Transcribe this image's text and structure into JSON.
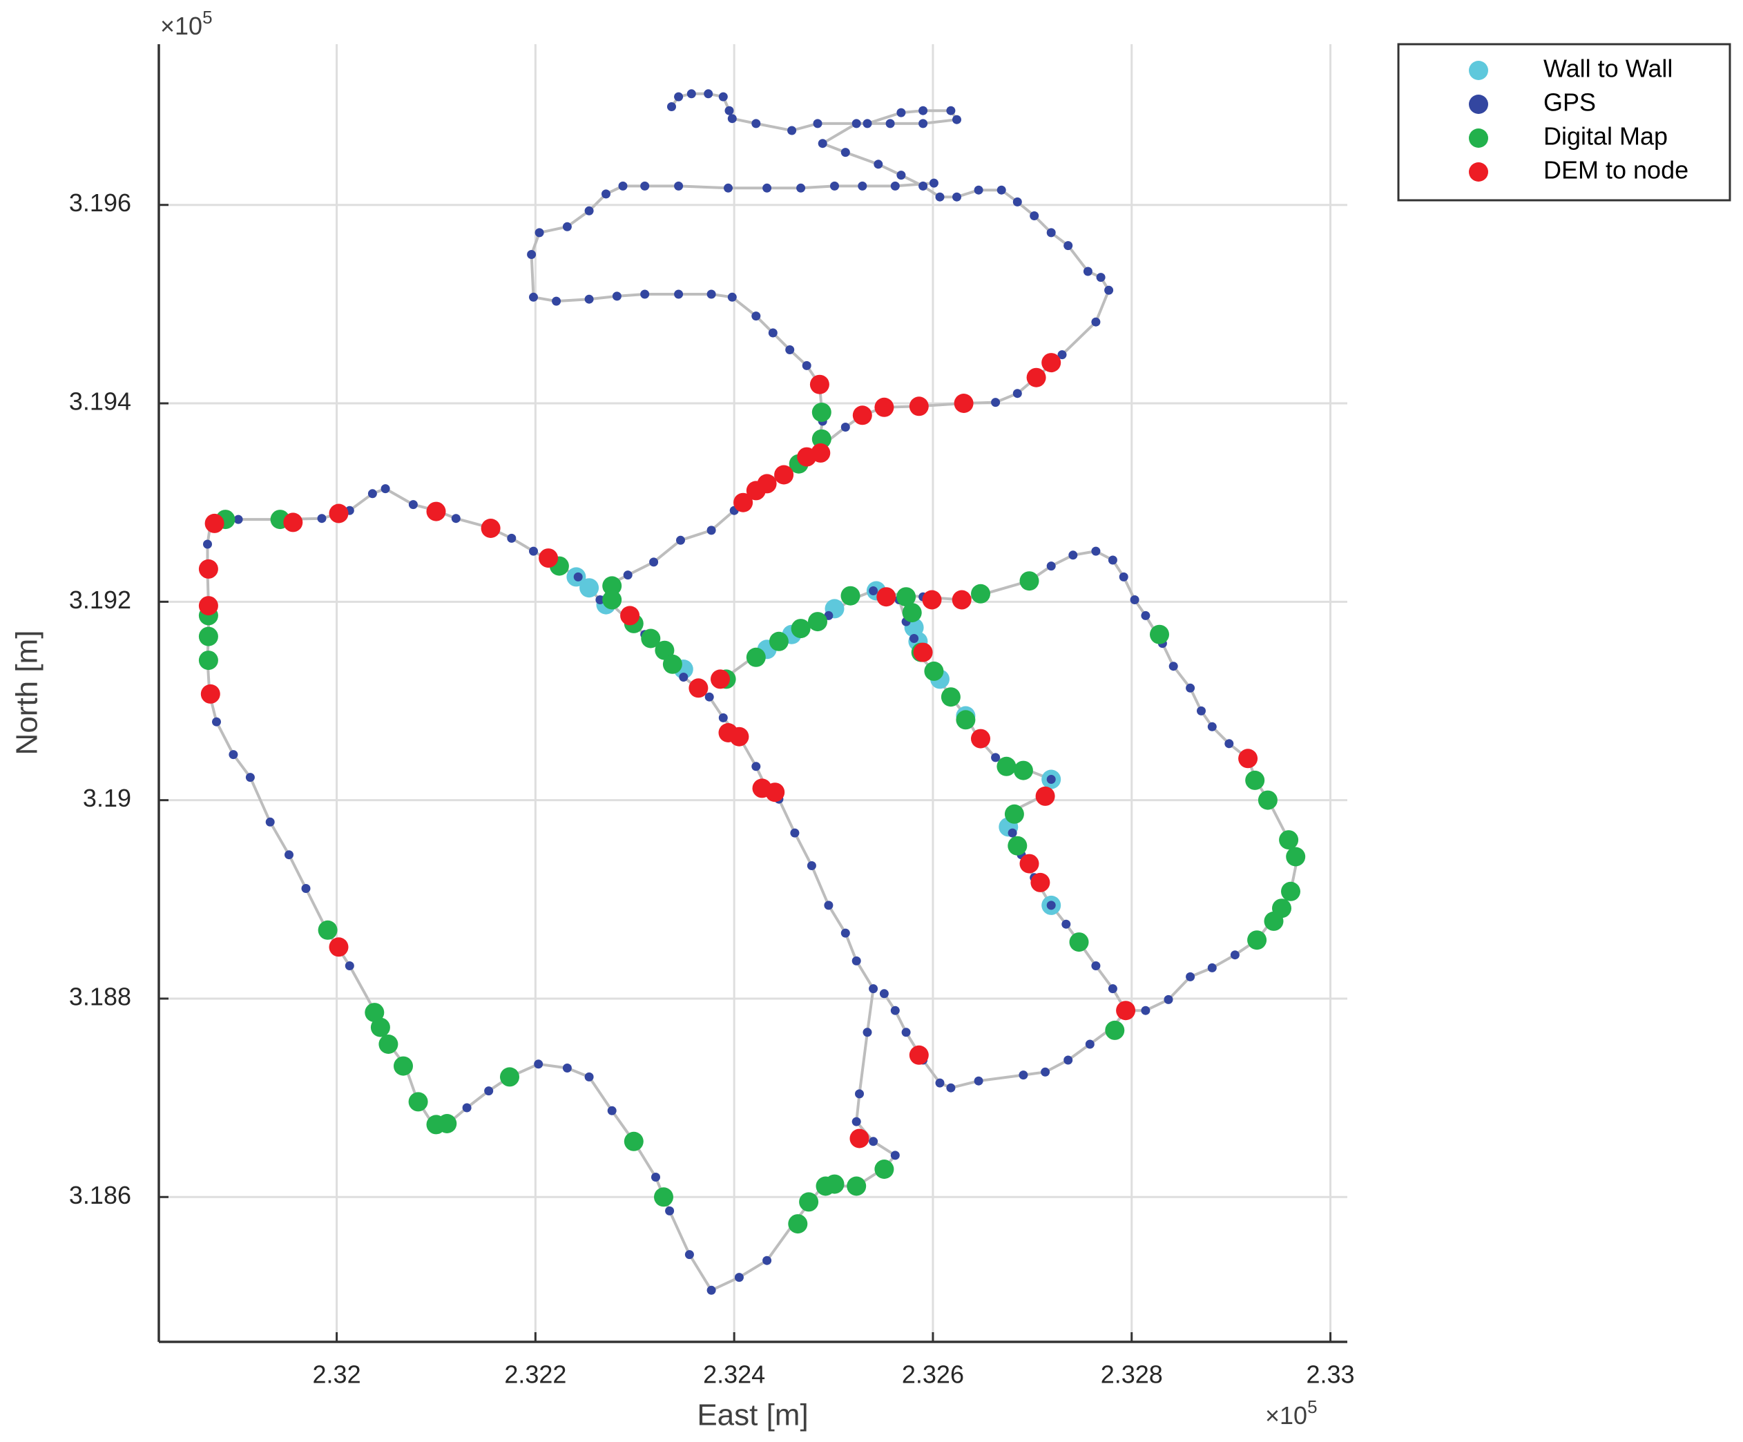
{
  "chart_data": {
    "type": "scatter",
    "xlabel": "East [m]",
    "ylabel": "North [m]",
    "x_multiplier": {
      "base": "×10",
      "exponent": "5"
    },
    "y_multiplier": {
      "base": "×10",
      "exponent": "5"
    },
    "xlim": [
      2.31821,
      2.33017
    ],
    "ylim": [
      3.18454,
      3.19762
    ],
    "xticks": [
      2.32,
      2.322,
      2.324,
      2.326,
      2.328,
      2.33
    ],
    "yticks": [
      3.186,
      3.188,
      3.19,
      3.192,
      3.194,
      3.196
    ],
    "grid": true,
    "legend": "outside-northeast",
    "series": [
      {
        "name": "Wall to Wall",
        "color": "#5ec8dc",
        "x": [
          2.32241,
          2.32254,
          2.32271,
          2.32349,
          2.32433,
          2.32458,
          2.32501,
          2.32543,
          2.32581,
          2.32585,
          2.32607,
          2.32633,
          2.32676,
          2.32719,
          2.32719
        ],
        "values": [
          3.19225,
          3.19214,
          3.19197,
          3.19132,
          3.19152,
          3.19167,
          3.19193,
          3.19211,
          3.19174,
          3.1916,
          3.19122,
          3.19085,
          3.18973,
          3.19021,
          3.18894
        ]
      },
      {
        "name": "GPS",
        "color": "#3346a0",
        "line_color": "#bdbdbd",
        "x": [
          2.32265,
          2.32243,
          2.32224,
          2.32198,
          2.32176,
          2.32153,
          2.3212,
          2.321,
          2.32077,
          2.32049,
          2.32036,
          2.32013,
          2.31985,
          2.31941,
          2.31901,
          2.31873,
          2.3187,
          2.3187,
          2.31871,
          2.31871,
          2.3187,
          2.31872,
          2.31879,
          2.31896,
          2.31913,
          2.31933,
          2.31952,
          2.31969,
          2.3199,
          2.32013,
          2.32039,
          2.32053,
          2.32069,
          2.32081,
          2.32097,
          2.32112,
          2.32131,
          2.32153,
          2.32174,
          2.32203,
          2.32232,
          2.32254,
          2.32277,
          2.32299,
          2.32321,
          2.32335,
          2.32355,
          2.32377,
          2.32405,
          2.32433,
          2.32461,
          2.32489,
          2.32523,
          2.32551,
          2.32562,
          2.3254,
          2.32523,
          2.32526,
          2.32534,
          2.3254,
          2.32523,
          2.32512,
          2.32495,
          2.32478,
          2.32461,
          2.32445,
          2.32433,
          2.32422,
          2.32405,
          2.32389,
          2.32375,
          2.32349,
          2.32333,
          2.3231,
          2.32293,
          2.32277,
          2.32274,
          2.32293,
          2.32319,
          2.32346,
          2.32377,
          2.324,
          2.32422,
          2.3245,
          2.32484,
          2.32512,
          2.32529,
          2.32551,
          2.32586,
          2.32631,
          2.32663,
          2.32685,
          2.32704,
          2.3273,
          2.32764,
          2.32777,
          2.32769,
          2.32756,
          2.32736,
          2.32719,
          2.32702,
          2.32685,
          2.32669,
          2.32646,
          2.32624,
          2.32607,
          2.3259,
          2.32568,
          2.32545,
          2.32512,
          2.32489,
          2.32523,
          2.32557,
          2.3259,
          2.32624,
          2.32618,
          2.3259,
          2.32568,
          2.32534,
          2.32484,
          2.32458,
          2.32422,
          2.32398,
          2.32395,
          2.32389,
          2.32374,
          2.32357,
          2.32344,
          2.32337,
          null,
          2.32601,
          2.32562,
          2.32529,
          2.32501,
          2.32467,
          2.32433,
          2.32394,
          2.32344,
          2.3231,
          2.32288,
          2.32271,
          2.32254,
          2.32232,
          2.32204,
          2.32196,
          2.32198,
          2.32221,
          2.32254,
          2.32282,
          2.3231,
          2.32344,
          2.32377,
          2.32398,
          2.32422,
          2.32439,
          2.32456,
          2.32473,
          2.32486,
          2.32489,
          2.32484,
          null,
          2.32389,
          2.32422,
          2.32445,
          2.32467,
          2.32495,
          2.32517,
          2.3254,
          2.32557,
          2.3259,
          2.32629,
          2.32652,
          2.32697,
          2.32719,
          2.32741,
          2.32764,
          2.32781,
          2.32792,
          2.32803,
          2.32814,
          2.32831,
          2.32842,
          2.32859,
          2.3287,
          2.32881,
          2.32898,
          2.32917,
          2.32926,
          2.32937,
          2.32958,
          2.32967,
          2.3296,
          2.32949,
          2.32926,
          2.32904,
          2.32881,
          2.32859,
          2.32837,
          2.32814,
          2.32794,
          2.32781,
          2.32758,
          2.32736,
          2.32713,
          2.32691,
          2.32646,
          2.32618,
          2.32607,
          2.3259,
          2.32573,
          2.32562,
          2.32551,
          null,
          2.32566,
          2.32573,
          2.32581,
          2.32588,
          2.32601,
          2.32618,
          2.32633,
          2.32646,
          2.32663,
          2.32691,
          2.32719,
          2.32708,
          2.32682,
          2.3268,
          2.32689,
          2.32702,
          2.32719,
          2.32734,
          2.32747,
          2.32764,
          2.32781,
          2.32794
        ],
        "values": [
          3.19202,
          3.19225,
          3.19236,
          3.19251,
          3.19264,
          3.19275,
          3.19284,
          3.19292,
          3.19298,
          3.19314,
          3.19309,
          3.19292,
          3.19284,
          3.19283,
          3.19283,
          3.19279,
          3.19258,
          3.1923,
          3.19197,
          3.19169,
          3.19141,
          3.19107,
          3.19079,
          3.19046,
          3.19023,
          3.18978,
          3.18945,
          3.18911,
          3.18869,
          3.18833,
          3.18786,
          3.18754,
          3.18732,
          3.18698,
          3.18673,
          3.18674,
          3.1869,
          3.18707,
          3.18721,
          3.18734,
          3.1873,
          3.18721,
          3.18687,
          3.18656,
          3.1862,
          3.18586,
          3.18542,
          3.18506,
          3.18519,
          3.18536,
          3.18575,
          3.18611,
          3.18611,
          3.18629,
          3.18642,
          3.18656,
          3.18676,
          3.18704,
          3.18766,
          3.1881,
          3.18838,
          3.18866,
          3.18894,
          3.18934,
          3.18967,
          3.19001,
          3.19011,
          3.19034,
          3.19064,
          3.19083,
          3.19104,
          3.19124,
          3.19146,
          3.19167,
          3.19182,
          3.19197,
          3.19217,
          3.19227,
          3.1924,
          3.19262,
          3.19272,
          3.19292,
          3.19314,
          3.19331,
          3.19354,
          3.19376,
          3.19388,
          3.19396,
          3.19397,
          3.194,
          3.19401,
          3.1941,
          3.19426,
          3.19449,
          3.19482,
          3.19514,
          3.19527,
          3.19533,
          3.19559,
          3.19572,
          3.19589,
          3.19603,
          3.19615,
          3.19615,
          3.19608,
          3.19608,
          3.19619,
          3.1963,
          3.19641,
          3.19653,
          3.19662,
          3.19682,
          3.19682,
          3.19682,
          3.19686,
          3.19695,
          3.19695,
          3.19693,
          3.19682,
          3.19682,
          3.19675,
          3.19682,
          3.19687,
          3.19695,
          3.19709,
          3.19712,
          3.19712,
          3.19709,
          3.19699,
          null,
          3.19622,
          3.19619,
          3.19619,
          3.19619,
          3.19617,
          3.19617,
          3.19617,
          3.19619,
          3.19619,
          3.19619,
          3.19611,
          3.19594,
          3.19578,
          3.19572,
          3.1955,
          3.19507,
          3.19503,
          3.19505,
          3.19508,
          3.1951,
          3.1951,
          3.1951,
          3.19507,
          3.19488,
          3.19471,
          3.19454,
          3.19438,
          3.19419,
          3.19382,
          3.19354,
          null,
          3.19122,
          3.19146,
          3.1916,
          3.19171,
          3.19186,
          3.19202,
          3.19211,
          3.19208,
          3.19205,
          3.19202,
          3.19208,
          3.19221,
          3.19236,
          3.19247,
          3.19251,
          3.19242,
          3.19225,
          3.19202,
          3.19186,
          3.19158,
          3.19135,
          3.19113,
          3.1909,
          3.19074,
          3.19057,
          3.19042,
          3.19018,
          3.19001,
          3.1896,
          3.18943,
          3.18908,
          3.18889,
          3.18859,
          3.18844,
          3.18831,
          3.18822,
          3.18799,
          3.18788,
          3.18788,
          3.18771,
          3.18754,
          3.18738,
          3.18726,
          3.18723,
          3.18717,
          3.1871,
          3.18715,
          3.18738,
          3.18766,
          3.18788,
          3.18805,
          null,
          3.19202,
          3.1918,
          3.19163,
          3.19144,
          3.1913,
          3.19104,
          3.19085,
          3.19062,
          3.19043,
          3.19032,
          3.19021,
          3.19003,
          3.1899,
          3.18967,
          3.18945,
          3.18922,
          3.18894,
          3.18875,
          3.18857,
          3.18833,
          3.1881,
          3.18788
        ]
      },
      {
        "name": "Digital Map",
        "color": "#22b14c",
        "x": [
          2.31888,
          2.31943,
          2.31871,
          2.31871,
          2.31871,
          2.31991,
          2.32038,
          2.32044,
          2.32052,
          2.32067,
          2.32082,
          2.321,
          2.32111,
          2.32174,
          2.32299,
          2.32329,
          2.32464,
          2.32475,
          2.32492,
          2.32501,
          2.32523,
          2.32551,
          2.32224,
          2.32277,
          2.32277,
          2.32299,
          2.32316,
          2.3233,
          2.32338,
          2.32392,
          2.32422,
          2.32445,
          2.32467,
          2.32484,
          2.32517,
          2.32573,
          2.32579,
          2.32588,
          2.32601,
          2.32618,
          2.32633,
          2.32674,
          2.32691,
          2.32682,
          2.32685,
          2.32747,
          2.32783,
          2.32488,
          2.32488,
          2.32465,
          2.32648,
          2.32697,
          2.32828,
          2.32924,
          2.32937,
          2.32958,
          2.32965,
          2.3296,
          2.32951,
          2.32943,
          2.32926
        ],
        "values": [
          3.19283,
          3.19283,
          3.19186,
          3.19165,
          3.19141,
          3.18869,
          3.18786,
          3.18771,
          3.18754,
          3.18732,
          3.18696,
          3.18673,
          3.18674,
          3.18721,
          3.18656,
          3.186,
          3.18573,
          3.18595,
          3.18611,
          3.18613,
          3.18611,
          3.18628,
          3.19236,
          3.19216,
          3.19202,
          3.19178,
          3.19163,
          3.19151,
          3.19137,
          3.19122,
          3.19144,
          3.1916,
          3.19173,
          3.1918,
          3.19206,
          3.19205,
          3.19189,
          3.19149,
          3.1913,
          3.19104,
          3.19081,
          3.19034,
          3.1903,
          3.18986,
          3.18954,
          3.18857,
          3.18768,
          3.19391,
          3.19364,
          3.19339,
          3.19208,
          3.19221,
          3.19167,
          3.1902,
          3.19,
          3.1896,
          3.18943,
          3.18908,
          3.18891,
          3.18878,
          3.18859
        ]
      },
      {
        "name": "DEM to node",
        "color": "#ed1c24",
        "x": [
          2.31877,
          2.31956,
          2.32002,
          2.321,
          2.32155,
          2.32213,
          2.31871,
          2.31871,
          2.31873,
          2.32002,
          2.32295,
          2.32364,
          2.32386,
          2.32394,
          2.32405,
          2.32428,
          2.32441,
          2.32526,
          2.32586,
          2.32794,
          2.32708,
          2.32697,
          2.32713,
          2.32648,
          2.3259,
          2.32553,
          2.32599,
          2.32629,
          2.32486,
          2.32529,
          2.32551,
          2.32586,
          2.32631,
          2.32704,
          2.32719,
          2.32917,
          2.32409,
          2.32422,
          2.32433,
          2.3245,
          2.32473,
          2.32487
        ],
        "values": [
          3.19279,
          3.1928,
          3.19289,
          3.19291,
          3.19274,
          3.19244,
          3.19233,
          3.19196,
          3.19107,
          3.18852,
          3.19186,
          3.19113,
          3.19122,
          3.19068,
          3.19064,
          3.19012,
          3.19008,
          3.18659,
          3.18743,
          3.18788,
          3.18917,
          3.18936,
          3.19004,
          3.19062,
          3.19149,
          3.19205,
          3.19202,
          3.19202,
          3.19419,
          3.19388,
          3.19396,
          3.19397,
          3.194,
          3.19426,
          3.19441,
          3.19042,
          3.193,
          3.19312,
          3.19319,
          3.19328,
          3.19346,
          3.1935
        ]
      }
    ]
  }
}
